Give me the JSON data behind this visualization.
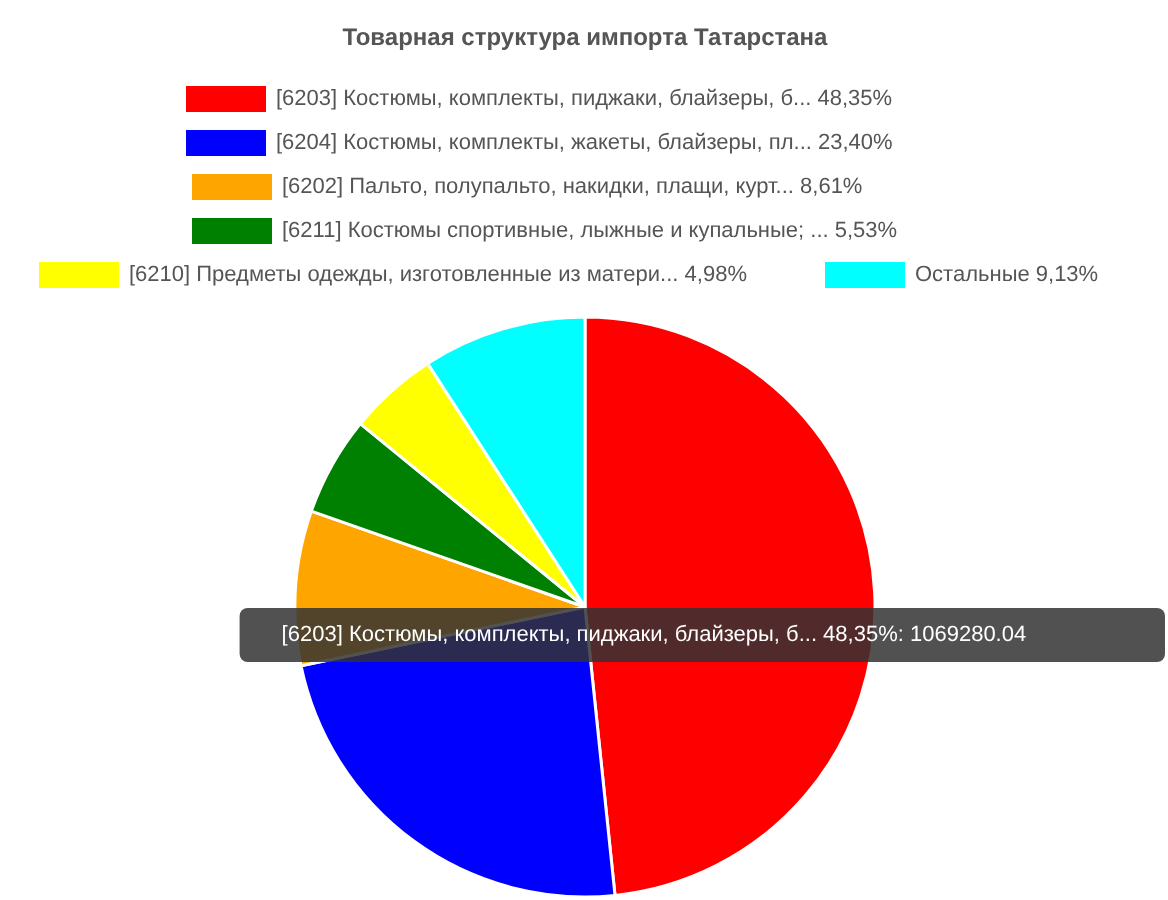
{
  "chart_data": {
    "type": "pie",
    "title": "Товарная структура импорта Татарстана",
    "categories": [
      "[6203] Костюмы, комплекты, пиджаки, блайзеры, б...",
      "[6204] Костюмы, комплекты, жакеты, блайзеры, пл...",
      "[6202] Пальто, полупальто, накидки, плащи, курт...",
      "[6211] Костюмы спортивные, лыжные и купальные; ...",
      "[6210] Предметы одежды, изготовленные из матери...",
      "Остальные "
    ],
    "values": [
      48.35,
      23.4,
      8.61,
      5.53,
      4.98,
      9.13
    ],
    "value_labels": [
      "48,35%",
      "23,40%",
      "8,61%",
      "5,53%",
      "4,98%",
      "9,13%"
    ],
    "colors": [
      "#ff0000",
      "#0000ff",
      "#ffa500",
      "#008000",
      "#ffff00",
      "#00ffff"
    ],
    "legend": "top",
    "annotations": [
      "[6203] Костюмы, комплекты, пиджаки, блайзеры, б... 48,35%: 1069280.04"
    ]
  }
}
